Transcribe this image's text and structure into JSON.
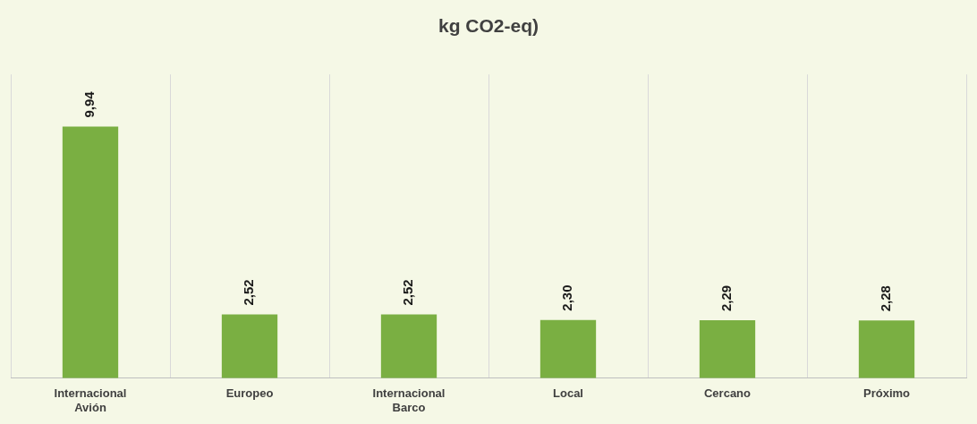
{
  "chart_data": {
    "type": "bar",
    "title": "kg CO2-eq)",
    "categories": [
      "Internacional Avión",
      "Europeo",
      "Internacional Barco",
      "Local",
      "Cercano",
      "Próximo"
    ],
    "values": [
      9.94,
      2.52,
      2.52,
      2.3,
      2.29,
      2.28
    ],
    "value_labels": [
      "9,94",
      "2,52",
      "2,52",
      "2,30",
      "2,29",
      "2,28"
    ],
    "color": "#7aaf42",
    "ylim": [
      0,
      12
    ],
    "tick_labels": "x",
    "grid": "x",
    "legend": false
  }
}
